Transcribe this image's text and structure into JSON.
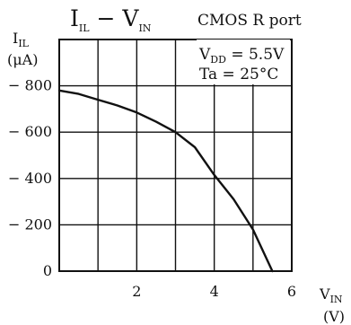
{
  "chart_data": {
    "type": "line",
    "title": "I",
    "title_parts": {
      "i": "I",
      "i_sub": "IL",
      "dash": " − ",
      "v": "V",
      "v_sub": "IN"
    },
    "subtitle": "CMOS R port",
    "ylabel": {
      "main": "I",
      "sub": "IL",
      "unit": "(μA)"
    },
    "xlabel": {
      "main": "V",
      "sub": "IN",
      "unit": "(V)"
    },
    "xlim": [
      0,
      6
    ],
    "ylim": [
      0,
      -1000
    ],
    "grid": true,
    "x_ticks": [
      0,
      1,
      2,
      3,
      4,
      5,
      6
    ],
    "y_ticks": [
      0,
      -200,
      -400,
      -600,
      -800,
      -1000
    ],
    "x_tick_labels": [
      {
        "value": 2,
        "label": "2"
      },
      {
        "value": 4,
        "label": "4"
      },
      {
        "value": 6,
        "label": "6"
      }
    ],
    "y_tick_labels": [
      {
        "value": 0,
        "label": "0"
      },
      {
        "value": -200,
        "label": "− 200"
      },
      {
        "value": -400,
        "label": "− 400"
      },
      {
        "value": -600,
        "label": "− 600"
      },
      {
        "value": -800,
        "label": "− 800"
      }
    ],
    "conditions": {
      "vdd_main": "V",
      "vdd_sub": "DD",
      "vdd_value": " = 5.5V",
      "ta": "Ta = 25°C"
    },
    "series": [
      {
        "x": [
          0,
          0.5,
          1,
          1.5,
          2,
          2.5,
          3,
          3.5,
          4,
          4.5,
          5,
          5.5
        ],
        "y": [
          -780,
          -765,
          -740,
          -715,
          -685,
          -645,
          -600,
          -535,
          -415,
          -310,
          -180,
          0
        ]
      }
    ],
    "colors": {
      "line": "#111111",
      "grid": "#111111"
    }
  }
}
